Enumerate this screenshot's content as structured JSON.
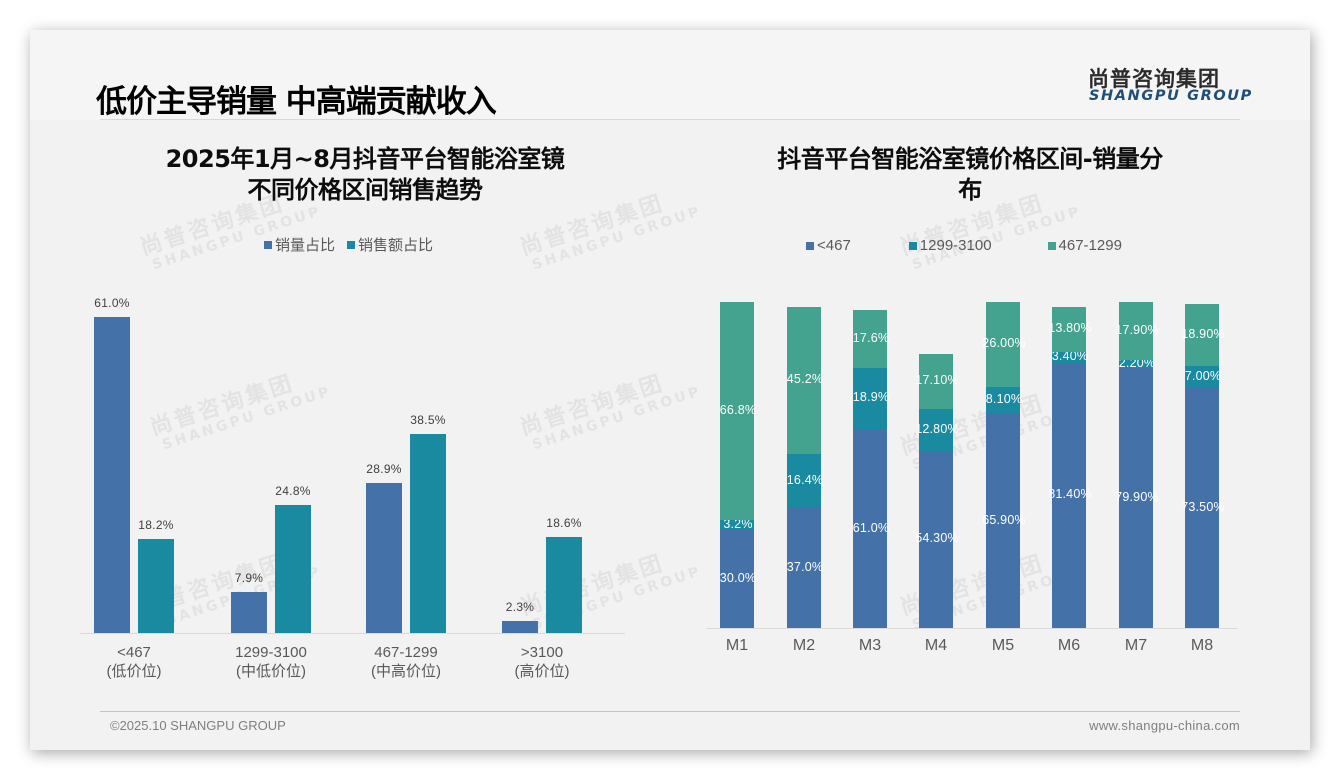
{
  "header": {
    "title": "低价主导销量 中高端贡献收入",
    "logo_cn": "尚普咨询集团",
    "logo_en": "SHANGPU GROUP"
  },
  "watermark": {
    "cn": "尚普咨询集团",
    "en": "SHANGPU GROUP"
  },
  "footer": {
    "copyright": "©2025.10 SHANGPU GROUP",
    "website": "www.shangpu-china.com"
  },
  "colors": {
    "blue": "#4472a8",
    "teal": "#1a8aa0",
    "green": "#43a38e"
  },
  "chart_data": [
    {
      "type": "bar",
      "title": "2025年1月~8月抖音平台智能浴室镜不同价格区间销售趋势",
      "title_lines": [
        "2025年1月~8月抖音平台智能浴室镜",
        "不同价格区间销售趋势"
      ],
      "categories": [
        "<467",
        "1299-3100",
        "467-1299",
        ">3100"
      ],
      "category_sublabels": [
        "(低价位)",
        "(中低价位)",
        "(中高价位)",
        "(高价位)"
      ],
      "series": [
        {
          "name": "销量占比",
          "color": "#4472a8",
          "values": [
            61.0,
            7.9,
            28.9,
            2.3
          ],
          "labels": [
            "61.0%",
            "7.9%",
            "28.9%",
            "2.3%"
          ]
        },
        {
          "name": "销售额占比",
          "color": "#1a8aa0",
          "values": [
            18.2,
            24.8,
            38.5,
            18.6
          ],
          "labels": [
            "18.2%",
            "24.8%",
            "38.5%",
            "18.6%"
          ]
        }
      ],
      "xlabel": "",
      "ylabel": "",
      "unit": "%",
      "grid": false,
      "legend_position": "top"
    },
    {
      "type": "bar",
      "stacked": true,
      "title": "抖音平台智能浴室镜价格区间-销量分布",
      "title_lines": [
        "抖音平台智能浴室镜价格区间-销量分",
        "布"
      ],
      "categories": [
        "M1",
        "M2",
        "M3",
        "M4",
        "M5",
        "M6",
        "M7",
        "M8"
      ],
      "series": [
        {
          "name": "<467",
          "color": "#4472a8",
          "values": [
            30.0,
            37.0,
            61.0,
            54.3,
            65.9,
            81.4,
            79.9,
            73.5
          ],
          "labels": [
            "30.0%",
            "37.0%",
            "61.0%",
            "54.30%",
            "65.90%",
            "81.40%",
            "79.90%",
            "73.50%"
          ]
        },
        {
          "name": "1299-3100",
          "color": "#1a8aa0",
          "values": [
            3.2,
            16.4,
            18.9,
            12.8,
            8.1,
            3.4,
            2.2,
            7.0
          ],
          "labels": [
            "3.2%",
            "16.4%",
            "18.9%",
            "12.80%",
            "8.10%",
            "3.40%",
            "2.20%",
            "7.00%"
          ]
        },
        {
          "name": "467-1299",
          "color": "#43a38e",
          "values": [
            66.8,
            45.2,
            17.6,
            17.1,
            26.0,
            13.8,
            17.9,
            18.9
          ],
          "labels": [
            "66.8%",
            "45.2%",
            "17.6%",
            "17.10%",
            "26.00%",
            "13.80%",
            "17.90%",
            "18.90%"
          ]
        }
      ],
      "xlabel": "",
      "ylabel": "",
      "unit": "%",
      "grid": false,
      "legend_position": "top"
    }
  ]
}
